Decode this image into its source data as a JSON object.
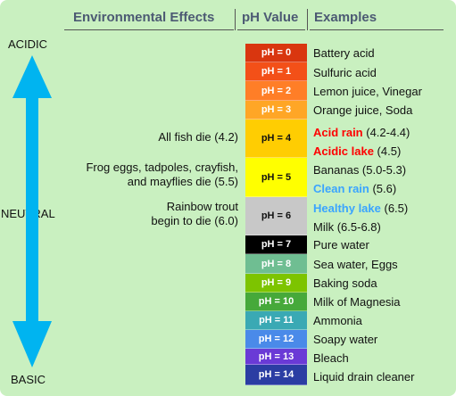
{
  "headers": {
    "effects": "Environmental Effects",
    "ph": "pH Value",
    "examples": "Examples"
  },
  "scale": {
    "top_label": "ACIDIC",
    "middle_label": "NEUTRAL",
    "bottom_label": "BASIC",
    "arrow_color": "#00b4f0"
  },
  "effects": [
    {
      "lines": [
        "All fish die (4.2)"
      ]
    },
    {
      "lines": [
        "Frog eggs, tadpoles, crayfish,",
        "and mayflies die (5.5)"
      ]
    },
    {
      "lines": [
        "Rainbow trout",
        "begin to die (6.0)"
      ]
    }
  ],
  "ph_levels": [
    {
      "label": "pH = 0",
      "color": "#d9360f",
      "text_color": "#ffffff"
    },
    {
      "label": "pH = 1",
      "color": "#f35018",
      "text_color": "#ffffff"
    },
    {
      "label": "pH = 2",
      "color": "#ff7e27",
      "text_color": "#ffffff"
    },
    {
      "label": "pH = 3",
      "color": "#ffa626",
      "text_color": "#ffffff"
    },
    {
      "label": "pH = 4",
      "color": "#ffcd02",
      "text_color": "#111111"
    },
    {
      "label": "pH = 5",
      "color": "#ffff00",
      "text_color": "#111111"
    },
    {
      "label": "pH = 6",
      "color": "#c8c8c8",
      "text_color": "#111111"
    },
    {
      "label": "pH = 7",
      "color": "#000000",
      "text_color": "#ffffff"
    },
    {
      "label": "pH = 8",
      "color": "#6fbe92",
      "text_color": "#ffffff"
    },
    {
      "label": "pH = 9",
      "color": "#7dc400",
      "text_color": "#ffffff"
    },
    {
      "label": "pH = 10",
      "color": "#46a93a",
      "text_color": "#ffffff"
    },
    {
      "label": "pH = 11",
      "color": "#3aa9b4",
      "text_color": "#ffffff"
    },
    {
      "label": "pH = 12",
      "color": "#4a8ae9",
      "text_color": "#ffffff"
    },
    {
      "label": "pH = 13",
      "color": "#6a3ad6",
      "text_color": "#ffffff"
    },
    {
      "label": "pH = 14",
      "color": "#2b3da3",
      "text_color": "#ffffff"
    }
  ],
  "examples": [
    {
      "parts": [
        {
          "text": "Battery acid"
        }
      ]
    },
    {
      "parts": [
        {
          "text": "Sulfuric acid"
        }
      ]
    },
    {
      "parts": [
        {
          "text": "Lemon juice, Vinegar"
        }
      ]
    },
    {
      "parts": [
        {
          "text": "Orange juice, Soda"
        }
      ]
    },
    {
      "parts": [
        {
          "text": "Acid rain",
          "highlight": "#ff0000"
        },
        {
          "text": " (4.2-4.4)"
        }
      ]
    },
    {
      "parts": [
        {
          "text": "Acidic lake",
          "highlight": "#ff0000"
        },
        {
          "text": " (4.5)"
        }
      ]
    },
    {
      "parts": [
        {
          "text": "Bananas (5.0-5.3)"
        }
      ]
    },
    {
      "parts": [
        {
          "text": "Clean rain",
          "highlight": "#3aa4ff"
        },
        {
          "text": " (5.6)"
        }
      ]
    },
    {
      "parts": [
        {
          "text": "Healthy lake",
          "highlight": "#3aa4ff"
        },
        {
          "text": " (6.5)"
        }
      ]
    },
    {
      "parts": [
        {
          "text": "Milk (6.5-6.8)"
        }
      ]
    },
    {
      "parts": [
        {
          "text": "Pure water"
        }
      ]
    },
    {
      "parts": [
        {
          "text": "Sea water, Eggs"
        }
      ]
    },
    {
      "parts": [
        {
          "text": "Baking soda"
        }
      ]
    },
    {
      "parts": [
        {
          "text": "Milk of Magnesia"
        }
      ]
    },
    {
      "parts": [
        {
          "text": "Ammonia"
        }
      ]
    },
    {
      "parts": [
        {
          "text": "Soapy water"
        }
      ]
    },
    {
      "parts": [
        {
          "text": "Bleach"
        }
      ]
    },
    {
      "parts": [
        {
          "text": "Liquid drain cleaner"
        }
      ]
    }
  ]
}
